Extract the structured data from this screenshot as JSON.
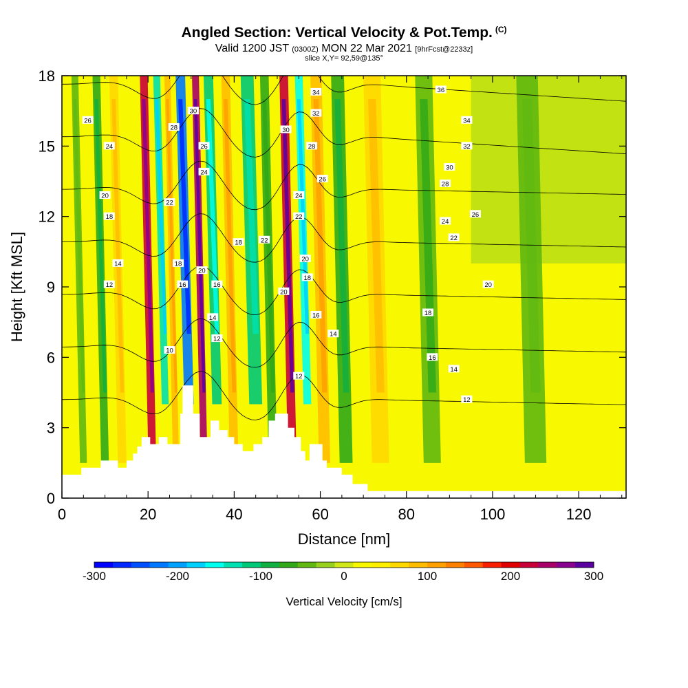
{
  "header": {
    "title": "Angled Section: Vertical Velocity & Pot.Temp.",
    "title_unit": "(C)",
    "valid_prefix": "Valid 1200 JST",
    "valid_utc": "(0300Z)",
    "valid_date": "MON 22 Mar 2021",
    "forecast": "[9hrFcst@2233z]",
    "slice": "slice X,Y= 92,59@135°"
  },
  "colorbar": {
    "label": "Vertical Velocity [cm/s]",
    "tick_labels": [
      "-300",
      "-200",
      "-100",
      "0",
      "100",
      "200",
      "300"
    ],
    "colors": [
      "#0000ff",
      "#0028ff",
      "#0050ff",
      "#0078ff",
      "#00a0ff",
      "#00d0ff",
      "#00ffee",
      "#00e0b0",
      "#00c878",
      "#10b040",
      "#30a818",
      "#60b810",
      "#98d020",
      "#d0e818",
      "#f8f800",
      "#fff000",
      "#ffd800",
      "#ffbc00",
      "#ffa000",
      "#ff8000",
      "#ff5800",
      "#f82000",
      "#e00000",
      "#c80038",
      "#a80068",
      "#880090",
      "#5a00a0"
    ]
  },
  "chart_data": {
    "type": "heatmap",
    "title": "Angled Section: Vertical Velocity & Pot.Temp.",
    "xlabel": "Distance [nm]",
    "ylabel": "Height [Kft MSL]",
    "xlim": [
      0,
      131
    ],
    "ylim": [
      0,
      18
    ],
    "x_ticks": [
      0,
      20,
      40,
      60,
      80,
      100,
      120
    ],
    "y_ticks": [
      0,
      3,
      6,
      9,
      12,
      15,
      18
    ],
    "colorbar_range": [
      -300,
      300
    ],
    "bands": [
      {
        "x": 5,
        "w": 1.6,
        "value": -40
      },
      {
        "x": 10,
        "w": 1.8,
        "value": -70
      },
      {
        "x": 14,
        "w": 2.0,
        "value": 70
      },
      {
        "x": 21,
        "w": 1.8,
        "value": 220
      },
      {
        "x": 24,
        "w": 1.6,
        "value": -140
      },
      {
        "x": 26.5,
        "w": 1.4,
        "value": 80
      },
      {
        "x": 29.5,
        "w": 2.2,
        "value": -220
      },
      {
        "x": 33,
        "w": 1.6,
        "value": 240
      },
      {
        "x": 36,
        "w": 2.2,
        "value": -120
      },
      {
        "x": 40,
        "w": 2.0,
        "value": 80
      },
      {
        "x": 45,
        "w": 3.0,
        "value": -110
      },
      {
        "x": 49,
        "w": 2.0,
        "value": -60
      },
      {
        "x": 53.5,
        "w": 2.0,
        "value": 230
      },
      {
        "x": 57,
        "w": 1.8,
        "value": -150
      },
      {
        "x": 61,
        "w": 2.6,
        "value": 90
      },
      {
        "x": 66,
        "w": 3.0,
        "value": -70
      },
      {
        "x": 74,
        "w": 4.0,
        "value": 70
      },
      {
        "x": 86,
        "w": 4.0,
        "value": -50
      },
      {
        "x": 110,
        "w": 5.0,
        "value": -40
      }
    ],
    "terrain_kft": [
      [
        0,
        1.0
      ],
      [
        4.5,
        1.0
      ],
      [
        4.5,
        1.3
      ],
      [
        9,
        1.3
      ],
      [
        9,
        1.6
      ],
      [
        13,
        1.6
      ],
      [
        13,
        1.3
      ],
      [
        15,
        1.3
      ],
      [
        15,
        1.6
      ],
      [
        16.5,
        1.6
      ],
      [
        16.5,
        1.9
      ],
      [
        17.5,
        1.9
      ],
      [
        17.5,
        2.2
      ],
      [
        18.5,
        2.2
      ],
      [
        18.5,
        2.6
      ],
      [
        20.5,
        2.6
      ],
      [
        20.5,
        2.3
      ],
      [
        22.5,
        2.3
      ],
      [
        22.5,
        2.6
      ],
      [
        24.5,
        2.6
      ],
      [
        24.5,
        2.3
      ],
      [
        27.5,
        2.3
      ],
      [
        27.5,
        3.6
      ],
      [
        28,
        3.6
      ],
      [
        28,
        4.8
      ],
      [
        30.5,
        4.8
      ],
      [
        30.5,
        3.6
      ],
      [
        32,
        3.6
      ],
      [
        32,
        2.6
      ],
      [
        34.5,
        2.6
      ],
      [
        34.5,
        3.3
      ],
      [
        36.5,
        3.3
      ],
      [
        36.5,
        2.9
      ],
      [
        38.5,
        2.9
      ],
      [
        38.5,
        2.6
      ],
      [
        40,
        2.6
      ],
      [
        40,
        2.3
      ],
      [
        42,
        2.3
      ],
      [
        42,
        2.0
      ],
      [
        44.5,
        2.0
      ],
      [
        44.5,
        2.3
      ],
      [
        46.5,
        2.3
      ],
      [
        46.5,
        2.6
      ],
      [
        48,
        2.6
      ],
      [
        48,
        3.3
      ],
      [
        49.5,
        3.3
      ],
      [
        49.5,
        3.6
      ],
      [
        52.5,
        3.6
      ],
      [
        52.5,
        3.0
      ],
      [
        54,
        3.0
      ],
      [
        54,
        2.6
      ],
      [
        55.5,
        2.6
      ],
      [
        55.5,
        2.0
      ],
      [
        56.5,
        2.0
      ],
      [
        56.5,
        1.6
      ],
      [
        57.5,
        1.6
      ],
      [
        57.5,
        2.3
      ],
      [
        60.5,
        2.3
      ],
      [
        60.5,
        1.6
      ],
      [
        61.5,
        1.6
      ],
      [
        61.5,
        1.3
      ],
      [
        65,
        1.3
      ],
      [
        65,
        1.0
      ],
      [
        67.5,
        1.0
      ],
      [
        67.5,
        0.6
      ],
      [
        71,
        0.6
      ],
      [
        71,
        0.3
      ],
      [
        131,
        0.3
      ]
    ],
    "contour_labels": [
      {
        "text": "36",
        "x": 88,
        "y": 17.4
      },
      {
        "text": "34",
        "x": 94,
        "y": 16.1
      },
      {
        "text": "32",
        "x": 94,
        "y": 15.0
      },
      {
        "text": "30",
        "x": 90,
        "y": 14.1
      },
      {
        "text": "28",
        "x": 89,
        "y": 13.4
      },
      {
        "text": "26",
        "x": 96,
        "y": 12.1
      },
      {
        "text": "24",
        "x": 89,
        "y": 11.8
      },
      {
        "text": "22",
        "x": 91,
        "y": 11.1
      },
      {
        "text": "20",
        "x": 99,
        "y": 9.1
      },
      {
        "text": "18",
        "x": 85,
        "y": 7.9
      },
      {
        "text": "16",
        "x": 86,
        "y": 6.0
      },
      {
        "text": "14",
        "x": 91,
        "y": 5.5
      },
      {
        "text": "12",
        "x": 94,
        "y": 4.2
      },
      {
        "text": "26",
        "x": 6,
        "y": 16.1
      },
      {
        "text": "24",
        "x": 11,
        "y": 15.0
      },
      {
        "text": "20",
        "x": 10,
        "y": 12.9
      },
      {
        "text": "18",
        "x": 11,
        "y": 12.0
      },
      {
        "text": "14",
        "x": 13,
        "y": 10.0
      },
      {
        "text": "12",
        "x": 11,
        "y": 9.1
      },
      {
        "text": "28",
        "x": 26,
        "y": 15.8
      },
      {
        "text": "30",
        "x": 30.5,
        "y": 16.5
      },
      {
        "text": "26",
        "x": 33,
        "y": 15.0
      },
      {
        "text": "24",
        "x": 33,
        "y": 13.9
      },
      {
        "text": "22",
        "x": 25,
        "y": 12.6
      },
      {
        "text": "18",
        "x": 27,
        "y": 10.0
      },
      {
        "text": "20",
        "x": 32.5,
        "y": 9.7
      },
      {
        "text": "16",
        "x": 28,
        "y": 9.1
      },
      {
        "text": "16",
        "x": 36,
        "y": 9.1
      },
      {
        "text": "14",
        "x": 35,
        "y": 7.7
      },
      {
        "text": "12",
        "x": 36,
        "y": 6.8
      },
      {
        "text": "10",
        "x": 25,
        "y": 6.3
      },
      {
        "text": "18",
        "x": 41,
        "y": 10.9
      },
      {
        "text": "22",
        "x": 47,
        "y": 11.0
      },
      {
        "text": "34",
        "x": 59,
        "y": 17.3
      },
      {
        "text": "32",
        "x": 59,
        "y": 16.4
      },
      {
        "text": "30",
        "x": 52,
        "y": 15.7
      },
      {
        "text": "28",
        "x": 58,
        "y": 15.0
      },
      {
        "text": "26",
        "x": 60.5,
        "y": 13.6
      },
      {
        "text": "24",
        "x": 55,
        "y": 12.9
      },
      {
        "text": "22",
        "x": 55,
        "y": 12.0
      },
      {
        "text": "20",
        "x": 56.5,
        "y": 10.2
      },
      {
        "text": "18",
        "x": 57,
        "y": 9.4
      },
      {
        "text": "20",
        "x": 51.5,
        "y": 8.8
      },
      {
        "text": "16",
        "x": 59,
        "y": 7.8
      },
      {
        "text": "14",
        "x": 63,
        "y": 7.0
      },
      {
        "text": "12",
        "x": 55,
        "y": 5.2
      }
    ]
  }
}
